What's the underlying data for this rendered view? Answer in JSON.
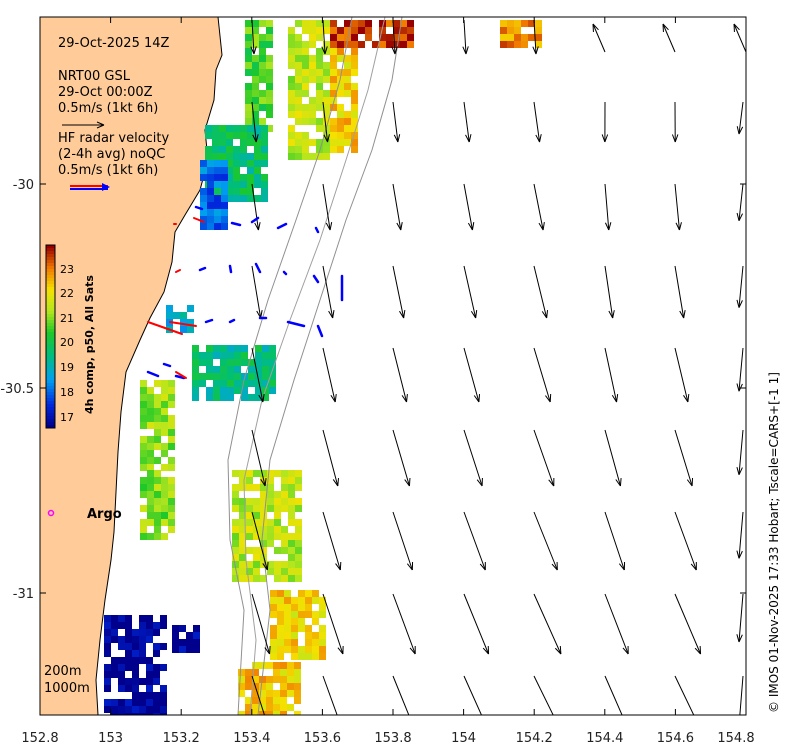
{
  "map": {
    "x_ticks": [
      "152.8",
      "153",
      "153.2",
      "153.4",
      "153.6",
      "153.8",
      "154",
      "154.2",
      "154.4",
      "154.6",
      "154.8"
    ],
    "y_ticks": [
      "-30",
      "-30.5",
      "-31"
    ],
    "land_color": "#ffcc99",
    "sea_color": "#ffffff",
    "contour_color": "#909090"
  },
  "annotation": {
    "date": "29-Oct-2025 14Z",
    "model_line1": "NRT00 GSL",
    "model_line2": "29-Oct 00:00Z",
    "model_scale": "0.5m/s (1kt 6h)",
    "radar_line1": "HF radar velocity",
    "radar_line2": "(2-4h avg) noQC",
    "radar_scale": "0.5m/s (1kt 6h)"
  },
  "colorbar": {
    "label": "4h comp, p50, All Sats",
    "ticks": [
      "23",
      "22",
      "21",
      "20",
      "19",
      "18",
      "17"
    ],
    "range": [
      16.5,
      23.5
    ]
  },
  "argo": {
    "label": "Argo",
    "color": "#ff00ff"
  },
  "depth_labels": {
    "d200": "200m",
    "d1000": "1000m"
  },
  "credit": "© IMOS 01-Nov-2025 17:33 Hobart; Tscale=CARS+[-1 1]",
  "colors": {
    "model_arrow": "#000000",
    "radar_arrow": "#ff0000",
    "radar_vector": "#0000ff",
    "frame": "#000000"
  }
}
